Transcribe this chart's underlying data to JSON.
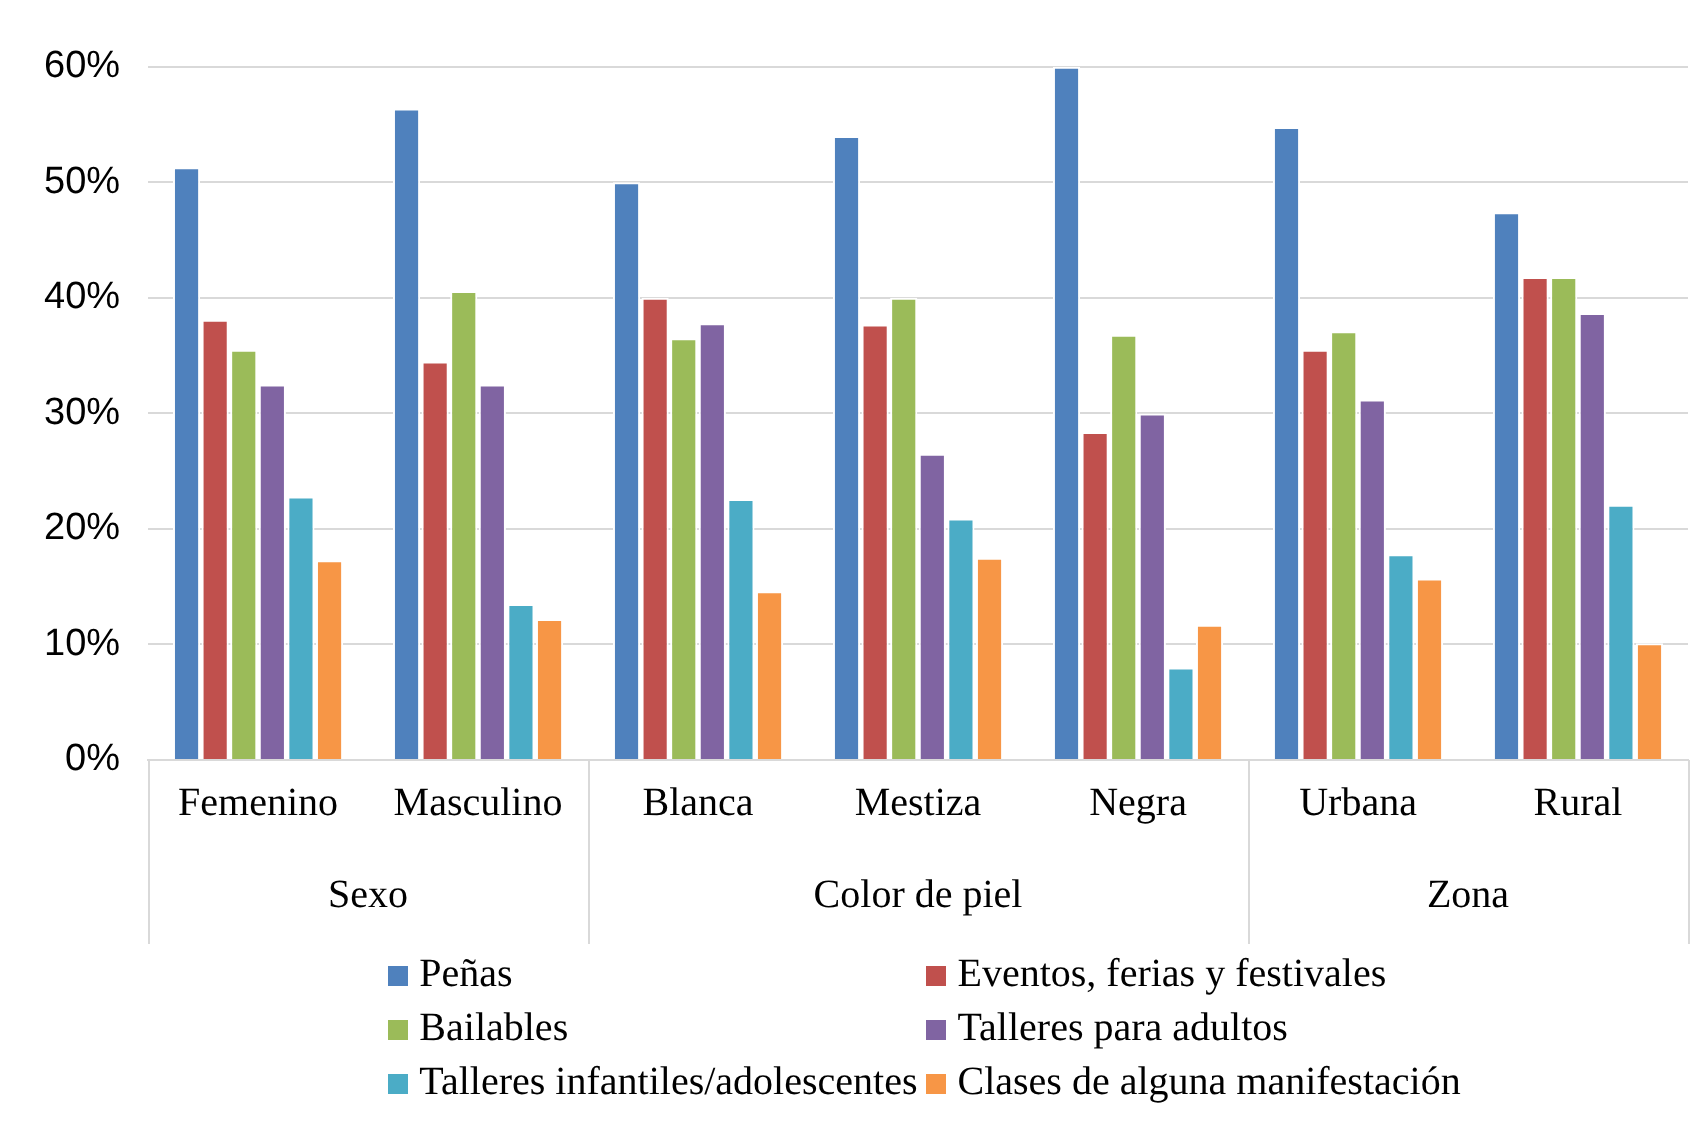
{
  "chart_data": {
    "type": "bar",
    "categories": [
      "Femenino",
      "Masculino",
      "Blanca",
      "Mestiza",
      "Negra",
      "Urbana",
      "Rural"
    ],
    "series": [
      {
        "name": "Peñas",
        "color": "#4f81bd",
        "values": [
          51.3,
          56.4,
          50.0,
          54.0,
          60.0,
          54.8,
          47.4
        ]
      },
      {
        "name": "Eventos, ferias y festivales",
        "color": "#c0504d",
        "values": [
          38.1,
          34.5,
          40.0,
          37.7,
          28.4,
          35.5,
          41.8
        ]
      },
      {
        "name": "Bailables",
        "color": "#9bbb59",
        "values": [
          35.5,
          40.6,
          36.5,
          40.0,
          36.8,
          37.1,
          41.8
        ]
      },
      {
        "name": "Talleres para adultos",
        "color": "#8064a2",
        "values": [
          32.5,
          32.5,
          37.8,
          26.5,
          30.0,
          31.2,
          38.7
        ]
      },
      {
        "name": "Talleres infantiles/adolescentes",
        "color": "#4bacc6",
        "values": [
          22.8,
          13.5,
          22.6,
          20.9,
          8.0,
          17.8,
          22.1
        ]
      },
      {
        "name": "Clases de alguna manifestación",
        "color": "#f79646",
        "values": [
          17.3,
          12.2,
          14.6,
          17.5,
          11.7,
          15.7,
          10.1
        ]
      }
    ],
    "ylim": [
      0,
      60
    ],
    "yticks": [
      {
        "value": 0,
        "label": "0%"
      },
      {
        "value": 10,
        "label": "10%"
      },
      {
        "value": 20,
        "label": "20%"
      },
      {
        "value": 30,
        "label": "30%"
      },
      {
        "value": 40,
        "label": "40%"
      },
      {
        "value": 50,
        "label": "50%"
      },
      {
        "value": 60,
        "label": "60%"
      }
    ],
    "annotations": [
      "Sexo",
      "Color de piel",
      "Zona"
    ],
    "grid": "y",
    "legend": "bottom"
  }
}
